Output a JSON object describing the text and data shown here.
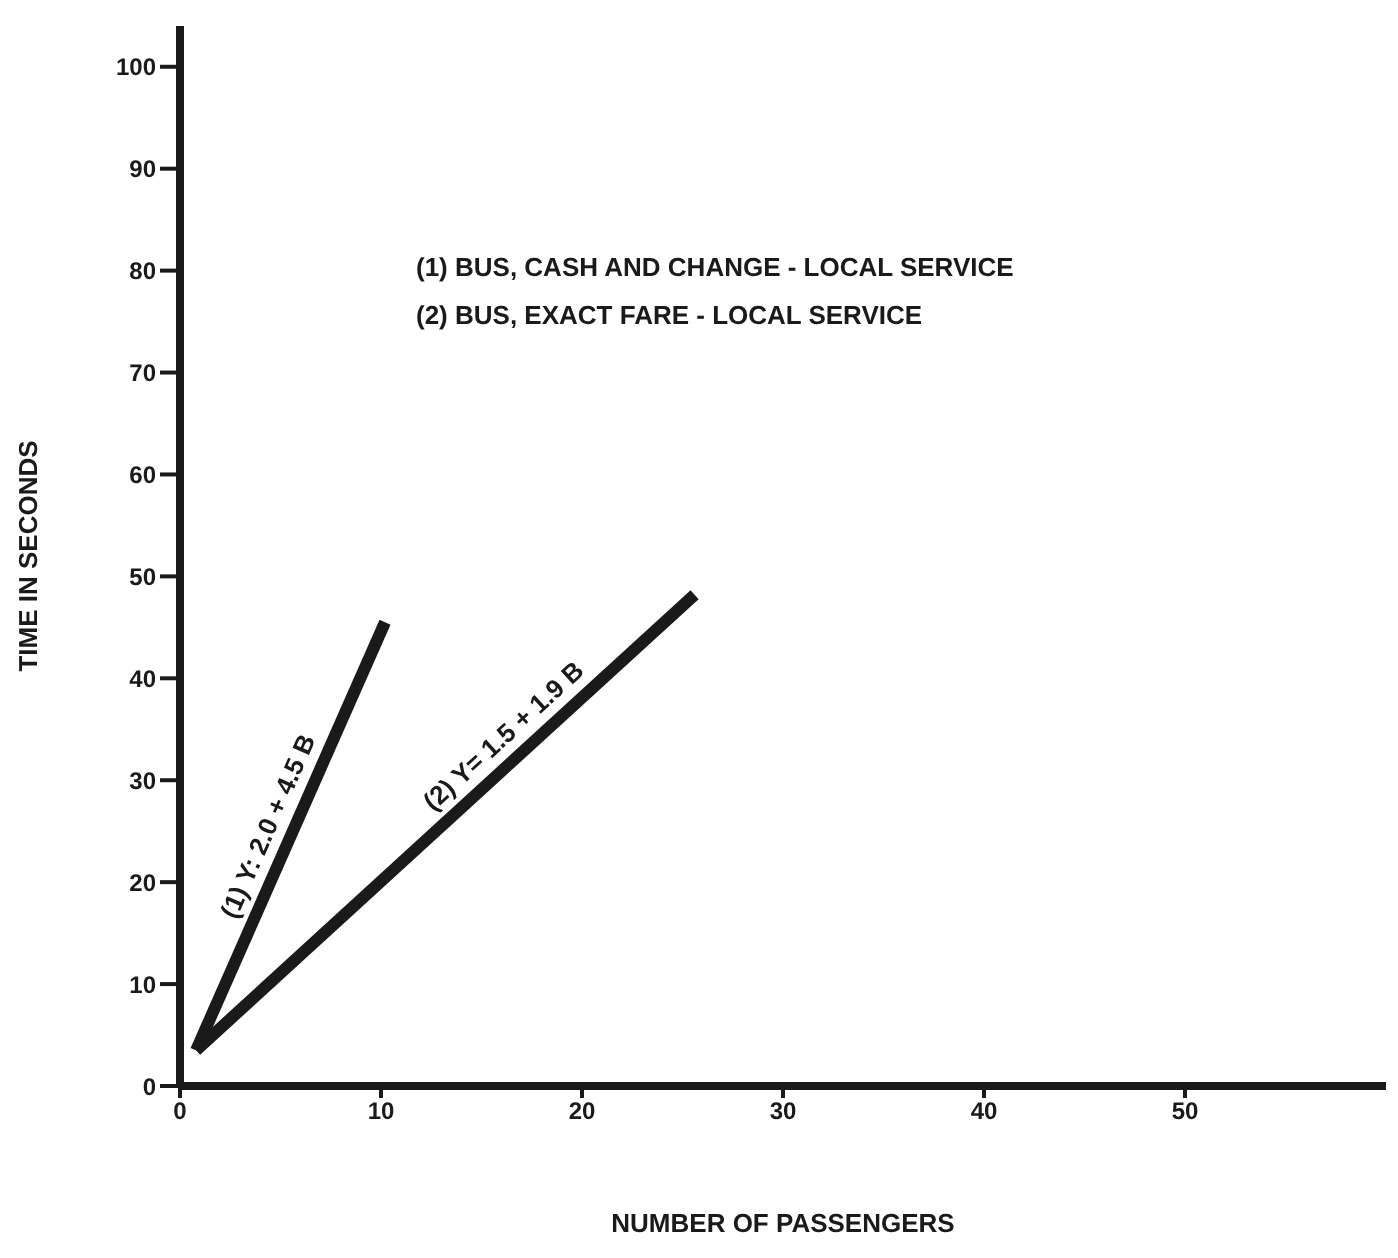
{
  "chart_data": {
    "type": "line",
    "xlabel": "NUMBER OF PASSENGERS",
    "ylabel": "TIME IN SECONDS",
    "xlim": [
      0,
      60
    ],
    "xticks": [
      0,
      10,
      20,
      30,
      40,
      50
    ],
    "ylim": [
      0,
      104
    ],
    "yticks": [
      0,
      10,
      20,
      30,
      40,
      50,
      60,
      70,
      80,
      90,
      100
    ],
    "grid": false,
    "legend": false,
    "marker": "none",
    "line_style": "solid",
    "annotations": [
      "(1) BUS, CASH AND CHANGE - LOCAL SERVICE",
      "(2) BUS, EXACT FARE - LOCAL SERVICE"
    ],
    "series": [
      {
        "name": "(1) Y: 2.0 + 4.5 B",
        "color": "#1a1a1a",
        "x": [
          0.8,
          10.2
        ],
        "values": [
          3.5,
          45.5
        ]
      },
      {
        "name": "(2) Y= 1.5 + 1.9 B",
        "color": "#1a1a1a",
        "x": [
          0.8,
          25.6
        ],
        "values": [
          3.5,
          48.2
        ]
      }
    ]
  }
}
